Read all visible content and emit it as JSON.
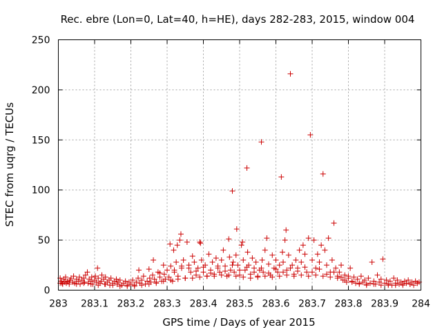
{
  "chart_data": {
    "type": "scatter",
    "title": "Rec. ebre (Lon=0, Lat=40, h=HE), days 282-283, 2015, window 004",
    "xlabel": "GPS time / Days of year 2015",
    "ylabel": "STEC from uqrg / TECUs",
    "xlim": [
      283,
      284
    ],
    "ylim": [
      0,
      250
    ],
    "x_ticks": [
      "283",
      "283.1",
      "283.2",
      "283.3",
      "283.4",
      "283.5",
      "283.6",
      "283.7",
      "283.8",
      "283.9",
      "284"
    ],
    "y_ticks": [
      "0",
      "50",
      "100",
      "150",
      "200",
      "250"
    ],
    "grid": true,
    "marker": "+",
    "color": "#cc0000",
    "series": [
      {
        "name": "",
        "points": [
          [
            283.005,
            12
          ],
          [
            283.005,
            7
          ],
          [
            283.008,
            9
          ],
          [
            283.012,
            6
          ],
          [
            283.015,
            11
          ],
          [
            283.018,
            8
          ],
          [
            283.02,
            13
          ],
          [
            283.022,
            7
          ],
          [
            283.025,
            9
          ],
          [
            283.03,
            6
          ],
          [
            283.032,
            10
          ],
          [
            283.035,
            12
          ],
          [
            283.04,
            8
          ],
          [
            283.042,
            14
          ],
          [
            283.045,
            7
          ],
          [
            283.05,
            11
          ],
          [
            283.055,
            9
          ],
          [
            283.058,
            13
          ],
          [
            283.06,
            6
          ],
          [
            283.065,
            10
          ],
          [
            283.07,
            12
          ],
          [
            283.072,
            8
          ],
          [
            283.075,
            15
          ],
          [
            283.08,
            18
          ],
          [
            283.082,
            7
          ],
          [
            283.085,
            11
          ],
          [
            283.09,
            9
          ],
          [
            283.092,
            13
          ],
          [
            283.095,
            6
          ],
          [
            283.1,
            10
          ],
          [
            283.102,
            14
          ],
          [
            283.105,
            8
          ],
          [
            283.108,
            22
          ],
          [
            283.11,
            12
          ],
          [
            283.115,
            7
          ],
          [
            283.118,
            9
          ],
          [
            283.12,
            15
          ],
          [
            283.125,
            11
          ],
          [
            283.128,
            6
          ],
          [
            283.13,
            13
          ],
          [
            283.135,
            8
          ],
          [
            283.14,
            10
          ],
          [
            283.142,
            5
          ],
          [
            283.145,
            12
          ],
          [
            283.15,
            7
          ],
          [
            283.155,
            9
          ],
          [
            283.16,
            11
          ],
          [
            283.162,
            6
          ],
          [
            283.165,
            8
          ],
          [
            283.17,
            10
          ],
          [
            283.175,
            5
          ],
          [
            283.18,
            7
          ],
          [
            283.185,
            9
          ],
          [
            283.19,
            4
          ],
          [
            283.195,
            8
          ],
          [
            283.2,
            6
          ],
          [
            283.205,
            10
          ],
          [
            283.21,
            5
          ],
          [
            283.215,
            8
          ],
          [
            283.22,
            12
          ],
          [
            283.222,
            20
          ],
          [
            283.225,
            7
          ],
          [
            283.23,
            10
          ],
          [
            283.235,
            14
          ],
          [
            283.24,
            6
          ],
          [
            283.245,
            9
          ],
          [
            283.25,
            21
          ],
          [
            283.252,
            12
          ],
          [
            283.255,
            8
          ],
          [
            283.26,
            15
          ],
          [
            283.262,
            30
          ],
          [
            283.265,
            11
          ],
          [
            283.27,
            7
          ],
          [
            283.275,
            18
          ],
          [
            283.28,
            13
          ],
          [
            283.285,
            9
          ],
          [
            283.29,
            25
          ],
          [
            283.292,
            16
          ],
          [
            283.295,
            11
          ],
          [
            283.3,
            20
          ],
          [
            283.305,
            13
          ],
          [
            283.308,
            46
          ],
          [
            283.31,
            24
          ],
          [
            283.315,
            9
          ],
          [
            283.318,
            40
          ],
          [
            283.32,
            18
          ],
          [
            283.325,
            28
          ],
          [
            283.328,
            45
          ],
          [
            283.33,
            14
          ],
          [
            283.335,
            50
          ],
          [
            283.338,
            56
          ],
          [
            283.34,
            22
          ],
          [
            283.345,
            30
          ],
          [
            283.35,
            12
          ],
          [
            283.355,
            48
          ],
          [
            283.36,
            25
          ],
          [
            283.365,
            18
          ],
          [
            283.37,
            34
          ],
          [
            283.375,
            28
          ],
          [
            283.38,
            15
          ],
          [
            283.385,
            22
          ],
          [
            283.39,
            48
          ],
          [
            283.392,
            47
          ],
          [
            283.395,
            30
          ],
          [
            283.4,
            18
          ],
          [
            283.405,
            25
          ],
          [
            283.41,
            14
          ],
          [
            283.415,
            36
          ],
          [
            283.42,
            20
          ],
          [
            283.425,
            28
          ],
          [
            283.43,
            16
          ],
          [
            283.435,
            32
          ],
          [
            283.44,
            22
          ],
          [
            283.445,
            18
          ],
          [
            283.45,
            30
          ],
          [
            283.455,
            40
          ],
          [
            283.46,
            24
          ],
          [
            283.465,
            14
          ],
          [
            283.47,
            51
          ],
          [
            283.472,
            33
          ],
          [
            283.475,
            20
          ],
          [
            283.48,
            99
          ],
          [
            283.482,
            28
          ],
          [
            283.485,
            18
          ],
          [
            283.49,
            35
          ],
          [
            283.492,
            61
          ],
          [
            283.495,
            25
          ],
          [
            283.5,
            15
          ],
          [
            283.505,
            45
          ],
          [
            283.508,
            48
          ],
          [
            283.51,
            30
          ],
          [
            283.515,
            20
          ],
          [
            283.52,
            122
          ],
          [
            283.522,
            38
          ],
          [
            283.525,
            25
          ],
          [
            283.53,
            16
          ],
          [
            283.535,
            32
          ],
          [
            283.54,
            22
          ],
          [
            283.545,
            28
          ],
          [
            283.55,
            14
          ],
          [
            283.555,
            20
          ],
          [
            283.56,
            148
          ],
          [
            283.562,
            30
          ],
          [
            283.565,
            18
          ],
          [
            283.57,
            40
          ],
          [
            283.575,
            52
          ],
          [
            283.58,
            26
          ],
          [
            283.585,
            15
          ],
          [
            283.59,
            35
          ],
          [
            283.595,
            22
          ],
          [
            283.6,
            30
          ],
          [
            283.605,
            18
          ],
          [
            283.61,
            25
          ],
          [
            283.615,
            113
          ],
          [
            283.618,
            38
          ],
          [
            283.62,
            28
          ],
          [
            283.625,
            50
          ],
          [
            283.628,
            60
          ],
          [
            283.63,
            20
          ],
          [
            283.635,
            35
          ],
          [
            283.64,
            216
          ],
          [
            283.645,
            25
          ],
          [
            283.65,
            16
          ],
          [
            283.655,
            30
          ],
          [
            283.66,
            22
          ],
          [
            283.665,
            40
          ],
          [
            283.67,
            28
          ],
          [
            283.675,
            45
          ],
          [
            283.68,
            36
          ],
          [
            283.685,
            18
          ],
          [
            283.69,
            52
          ],
          [
            283.695,
            155
          ],
          [
            283.7,
            30
          ],
          [
            283.705,
            50
          ],
          [
            283.71,
            22
          ],
          [
            283.715,
            36
          ],
          [
            283.72,
            28
          ],
          [
            283.725,
            45
          ],
          [
            283.73,
            116
          ],
          [
            283.735,
            40
          ],
          [
            283.74,
            25
          ],
          [
            283.745,
            52
          ],
          [
            283.75,
            18
          ],
          [
            283.755,
            30
          ],
          [
            283.76,
            67
          ],
          [
            283.765,
            22
          ],
          [
            283.77,
            14
          ],
          [
            283.775,
            18
          ],
          [
            283.78,
            25
          ],
          [
            283.785,
            10
          ],
          [
            283.79,
            15
          ],
          [
            283.795,
            8
          ],
          [
            283.8,
            12
          ],
          [
            283.805,
            22
          ],
          [
            283.81,
            9
          ],
          [
            283.815,
            13
          ],
          [
            283.82,
            7
          ],
          [
            283.825,
            11
          ],
          [
            283.83,
            6
          ],
          [
            283.835,
            14
          ],
          [
            283.84,
            8
          ],
          [
            283.845,
            10
          ],
          [
            283.85,
            5
          ],
          [
            283.855,
            12
          ],
          [
            283.86,
            7
          ],
          [
            283.865,
            28
          ],
          [
            283.87,
            9
          ],
          [
            283.875,
            6
          ],
          [
            283.88,
            15
          ],
          [
            283.885,
            8
          ],
          [
            283.89,
            11
          ],
          [
            283.895,
            31
          ],
          [
            283.9,
            7
          ],
          [
            283.905,
            10
          ],
          [
            283.91,
            6
          ],
          [
            283.915,
            9
          ],
          [
            283.92,
            5
          ],
          [
            283.925,
            12
          ],
          [
            283.93,
            7
          ],
          [
            283.935,
            10
          ],
          [
            283.94,
            6
          ],
          [
            283.945,
            8
          ],
          [
            283.95,
            5
          ],
          [
            283.955,
            9
          ],
          [
            283.96,
            7
          ],
          [
            283.965,
            10
          ],
          [
            283.97,
            6
          ],
          [
            283.975,
            8
          ],
          [
            283.98,
            5
          ],
          [
            283.985,
            9
          ],
          [
            283.99,
            7
          ],
          [
            283.995,
            8
          ],
          [
            283.01,
            7
          ],
          [
            283.03,
            8
          ],
          [
            283.05,
            6
          ],
          [
            283.07,
            7
          ],
          [
            283.09,
            6
          ],
          [
            283.11,
            5
          ],
          [
            283.13,
            6
          ],
          [
            283.15,
            5
          ],
          [
            283.17,
            4
          ],
          [
            283.19,
            5
          ],
          [
            283.21,
            4
          ],
          [
            283.23,
            5
          ],
          [
            283.25,
            6
          ],
          [
            283.27,
            8
          ],
          [
            283.29,
            9
          ],
          [
            283.31,
            10
          ],
          [
            283.33,
            11
          ],
          [
            283.35,
            12
          ],
          [
            283.37,
            12
          ],
          [
            283.39,
            13
          ],
          [
            283.41,
            14
          ],
          [
            283.43,
            14
          ],
          [
            283.45,
            15
          ],
          [
            283.47,
            15
          ],
          [
            283.49,
            14
          ],
          [
            283.51,
            13
          ],
          [
            283.53,
            12
          ],
          [
            283.55,
            13
          ],
          [
            283.57,
            14
          ],
          [
            283.59,
            13
          ],
          [
            283.61,
            14
          ],
          [
            283.63,
            15
          ],
          [
            283.65,
            14
          ],
          [
            283.67,
            15
          ],
          [
            283.69,
            14
          ],
          [
            283.71,
            15
          ],
          [
            283.73,
            14
          ],
          [
            283.75,
            13
          ],
          [
            283.77,
            12
          ],
          [
            283.79,
            10
          ],
          [
            283.81,
            8
          ],
          [
            283.83,
            7
          ],
          [
            283.85,
            6
          ],
          [
            283.87,
            6
          ],
          [
            283.89,
            5
          ],
          [
            283.91,
            5
          ],
          [
            283.93,
            5
          ],
          [
            283.95,
            6
          ],
          [
            283.97,
            6
          ],
          [
            283.99,
            7
          ],
          [
            283.28,
            17
          ],
          [
            283.32,
            20
          ],
          [
            283.36,
            22
          ],
          [
            283.4,
            23
          ],
          [
            283.44,
            24
          ],
          [
            283.48,
            25
          ],
          [
            283.52,
            23
          ],
          [
            283.56,
            22
          ],
          [
            283.6,
            21
          ],
          [
            283.64,
            22
          ],
          [
            283.68,
            23
          ],
          [
            283.72,
            21
          ],
          [
            283.76,
            18
          ],
          [
            283.8,
            14
          ],
          [
            283.34,
            24
          ],
          [
            283.38,
            19
          ],
          [
            283.42,
            17
          ],
          [
            283.46,
            19
          ],
          [
            283.5,
            20
          ],
          [
            283.54,
            18
          ],
          [
            283.58,
            17
          ],
          [
            283.62,
            18
          ],
          [
            283.66,
            19
          ],
          [
            283.7,
            18
          ],
          [
            283.74,
            16
          ],
          [
            283.78,
            13
          ]
        ]
      }
    ]
  }
}
